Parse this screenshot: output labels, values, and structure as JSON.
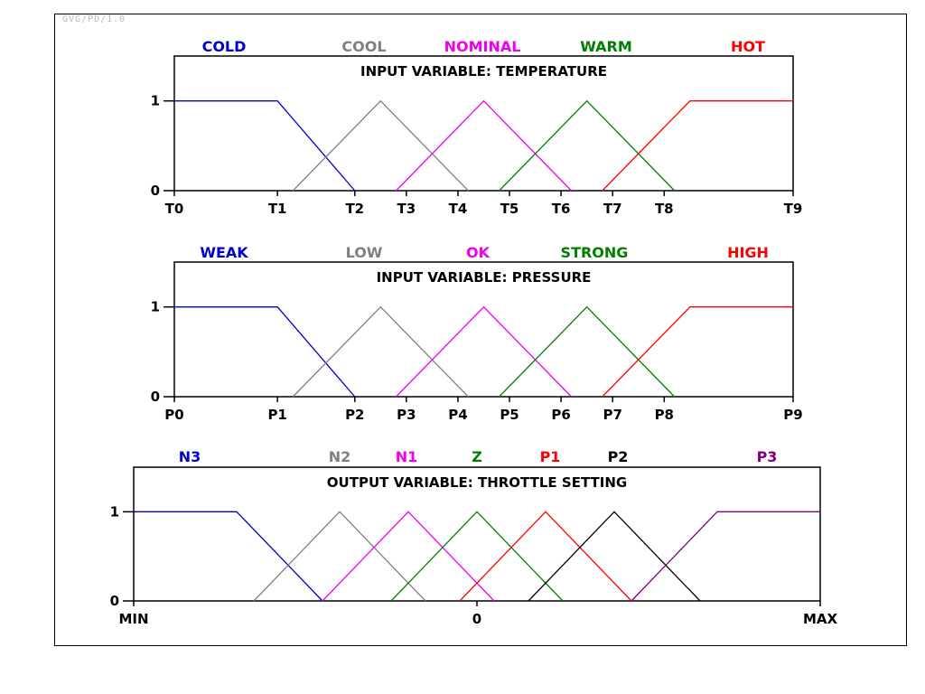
{
  "header": {
    "watermark": "GVG/PD/1.0"
  },
  "chart_data": [
    {
      "type": "line",
      "title": "INPUT VARIABLE: TEMPERATURE",
      "x_ticks": [
        "T0",
        "T1",
        "T2",
        "T3",
        "T4",
        "T5",
        "T6",
        "T7",
        "T8",
        "T9"
      ],
      "x_tick_pos": [
        0,
        2,
        3.5,
        4.5,
        5.5,
        6.5,
        7.5,
        8.5,
        9.5,
        12
      ],
      "xlim": [
        0,
        12
      ],
      "y_ticks": [
        "0",
        "1"
      ],
      "ylim": [
        0,
        1.5
      ],
      "grid": false,
      "series": [
        {
          "name": "COLD",
          "color": "#0000cc",
          "x": [
            0,
            2,
            3.5
          ],
          "y": [
            1,
            1,
            0
          ]
        },
        {
          "name": "COOL",
          "color": "#808080",
          "x": [
            2.3,
            4,
            5.7
          ],
          "y": [
            0,
            1,
            0
          ]
        },
        {
          "name": "NOMINAL",
          "color": "#ee00ee",
          "x": [
            4.3,
            6,
            7.7
          ],
          "y": [
            0,
            1,
            0
          ]
        },
        {
          "name": "WARM",
          "color": "#008000",
          "x": [
            6.3,
            8,
            9.7
          ],
          "y": [
            0,
            1,
            0
          ]
        },
        {
          "name": "HOT",
          "color": "#ff0000",
          "x": [
            8.3,
            10,
            12
          ],
          "y": [
            0,
            1,
            1
          ]
        }
      ]
    },
    {
      "type": "line",
      "title": "INPUT VARIABLE:  PRESSURE",
      "x_ticks": [
        "P0",
        "P1",
        "P2",
        "P3",
        "P4",
        "P5",
        "P6",
        "P7",
        "P8",
        "P9"
      ],
      "x_tick_pos": [
        0,
        2,
        3.5,
        4.5,
        5.5,
        6.5,
        7.5,
        8.5,
        9.5,
        12
      ],
      "xlim": [
        0,
        12
      ],
      "y_ticks": [
        "0",
        "1"
      ],
      "ylim": [
        0,
        1.5
      ],
      "grid": false,
      "series": [
        {
          "name": "WEAK",
          "color": "#0000cc",
          "x": [
            0,
            2,
            3.5
          ],
          "y": [
            1,
            1,
            0
          ]
        },
        {
          "name": "LOW",
          "color": "#808080",
          "x": [
            2.3,
            4,
            5.7
          ],
          "y": [
            0,
            1,
            0
          ]
        },
        {
          "name": "OK",
          "color": "#ee00ee",
          "x": [
            4.3,
            6,
            7.7
          ],
          "y": [
            0,
            1,
            0
          ]
        },
        {
          "name": "STRONG",
          "color": "#008000",
          "x": [
            6.3,
            8,
            9.7
          ],
          "y": [
            0,
            1,
            0
          ]
        },
        {
          "name": "HIGH",
          "color": "#ff0000",
          "x": [
            8.3,
            10,
            12
          ],
          "y": [
            0,
            1,
            1
          ]
        }
      ]
    },
    {
      "type": "line",
      "title": "OUTPUT VARIABLE:  THROTTLE SETTING",
      "x_ticks": [
        "MIN",
        "0",
        "MAX"
      ],
      "x_tick_pos": [
        0,
        10,
        20
      ],
      "xlim": [
        0,
        20
      ],
      "y_ticks": [
        "0",
        "1"
      ],
      "ylim": [
        0,
        1.5
      ],
      "grid": false,
      "series": [
        {
          "name": "N3",
          "color": "#0000cc",
          "x": [
            0,
            3,
            5.5
          ],
          "y": [
            1,
            1,
            0
          ]
        },
        {
          "name": "N2",
          "color": "#808080",
          "x": [
            3.5,
            6,
            8.5
          ],
          "y": [
            0,
            1,
            0
          ]
        },
        {
          "name": "N1",
          "color": "#ee00ee",
          "x": [
            5.5,
            8,
            10.5
          ],
          "y": [
            0,
            1,
            0
          ]
        },
        {
          "name": "Z",
          "color": "#008000",
          "x": [
            7.5,
            10,
            12.5
          ],
          "y": [
            0,
            1,
            0
          ]
        },
        {
          "name": "P1",
          "color": "#ff0000",
          "x": [
            9.5,
            12,
            14.5
          ],
          "y": [
            0,
            1,
            0
          ]
        },
        {
          "name": "P2",
          "color": "#000000",
          "x": [
            11.5,
            14,
            16.5
          ],
          "y": [
            0,
            1,
            0
          ]
        },
        {
          "name": "P3",
          "color": "#800080",
          "x": [
            14.5,
            17,
            20
          ],
          "y": [
            0,
            1,
            1
          ]
        }
      ]
    }
  ]
}
